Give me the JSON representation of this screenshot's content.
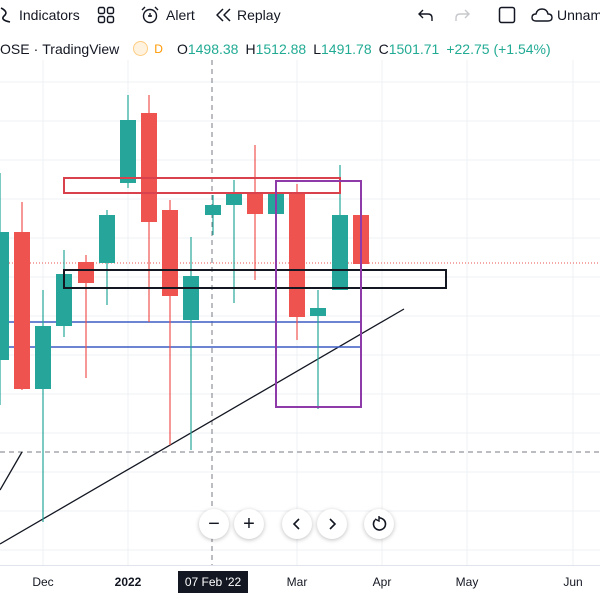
{
  "toolbar": {
    "indicators_label": "Indicators",
    "alert_label": "Alert",
    "replay_label": "Replay",
    "layout_name": "Unnam"
  },
  "legend": {
    "symbol": "OSE",
    "separator": "·",
    "source": "TradingView",
    "interval": "D",
    "open_key": "O",
    "open": "1498.38",
    "high_key": "H",
    "high": "1512.88",
    "low_key": "L",
    "low": "1491.78",
    "close_key": "C",
    "close": "1501.71",
    "change": "+22.75 (+1.54%)"
  },
  "colors": {
    "up": "#26a69a",
    "down": "#ef5350",
    "rect_red": "#d9414d",
    "rect_purple": "#8e3aa8",
    "line_blue": "#3b5cc4"
  },
  "x_axis": {
    "ticks": [
      "Dec",
      "2022",
      "Mar",
      "Apr",
      "May",
      "Jun"
    ],
    "crosshair_label": "07 Feb '22"
  },
  "nav": {
    "zoom_out": "−",
    "zoom_in": "+"
  }
}
